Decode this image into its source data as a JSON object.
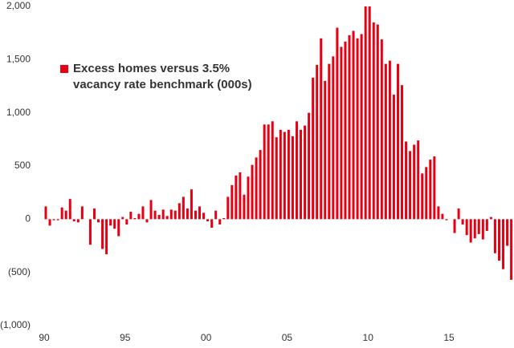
{
  "chart_data": {
    "type": "bar",
    "series": [
      {
        "name": "Excess homes versus 3.5% vacancy rate benchmark (000s)",
        "color": "#e60012",
        "values": [
          120,
          -60,
          -10,
          -10,
          110,
          80,
          190,
          -20,
          -30,
          120,
          0,
          -240,
          100,
          -30,
          -280,
          -330,
          -60,
          -90,
          -160,
          20,
          -50,
          70,
          10,
          50,
          120,
          -30,
          180,
          80,
          40,
          90,
          30,
          90,
          80,
          150,
          210,
          100,
          280,
          80,
          120,
          60,
          -20,
          -80,
          80,
          -50,
          10,
          210,
          320,
          410,
          440,
          230,
          400,
          510,
          580,
          650,
          890,
          890,
          920,
          770,
          840,
          820,
          840,
          780,
          920,
          840,
          880,
          1000,
          1330,
          1450,
          1700,
          1300,
          1460,
          1530,
          1800,
          1620,
          1670,
          1730,
          1770,
          1700,
          1740,
          2000,
          2000,
          1850,
          1830,
          1690,
          1460,
          1490,
          1170,
          1460,
          1260,
          730,
          640,
          700,
          740,
          430,
          490,
          560,
          590,
          120,
          50,
          -10,
          0,
          -130,
          100,
          -50,
          -150,
          -220,
          -180,
          -140,
          -190,
          -110,
          20,
          -320,
          -390,
          -470,
          -250,
          -570
        ]
      }
    ],
    "categories": [
      "90",
      null,
      null,
      null,
      null,
      null,
      null,
      null,
      null,
      null,
      null,
      null,
      null,
      null,
      null,
      null,
      null,
      null,
      null,
      null,
      "95",
      null,
      null,
      null,
      null,
      null,
      null,
      null,
      null,
      null,
      null,
      null,
      null,
      null,
      null,
      null,
      null,
      null,
      null,
      null,
      "00",
      null,
      null,
      null,
      null,
      null,
      null,
      null,
      null,
      null,
      null,
      null,
      null,
      null,
      null,
      null,
      null,
      null,
      null,
      null,
      "05",
      null,
      null,
      null,
      null,
      null,
      null,
      null,
      null,
      null,
      null,
      null,
      null,
      null,
      null,
      null,
      null,
      null,
      null,
      null,
      "10",
      null,
      null,
      null,
      null,
      null,
      null,
      null,
      null,
      null,
      null,
      null,
      null,
      null,
      null,
      null,
      null,
      null,
      null,
      null,
      "15",
      null,
      null,
      null,
      null,
      null,
      null,
      null,
      null,
      null,
      null,
      null,
      null,
      null,
      null,
      null
    ],
    "ylim": [
      -1000,
      2000
    ],
    "yticks": [
      {
        "value": -1000,
        "label": "(1,000)"
      },
      {
        "value": -500,
        "label": "(500)"
      },
      0,
      500,
      {
        "value": 1000,
        "label": "1,000"
      },
      {
        "value": 1500,
        "label": "1,500"
      },
      {
        "value": 2000,
        "label": "2,000"
      }
    ],
    "grid": false
  }
}
